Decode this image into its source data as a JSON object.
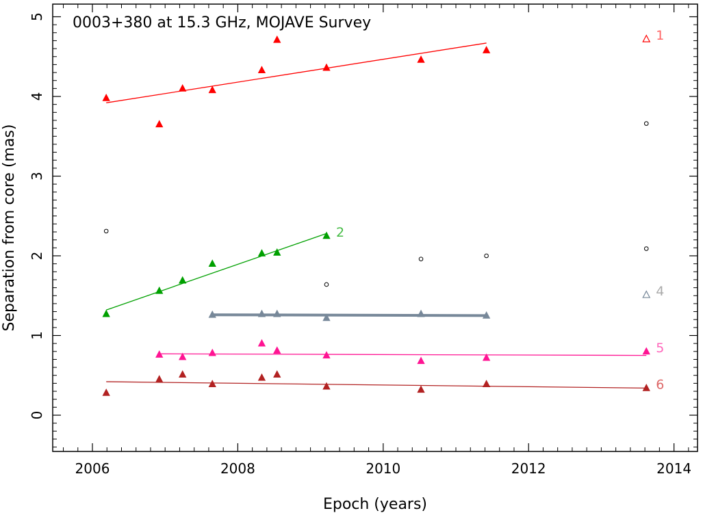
{
  "chart_data": {
    "type": "scatter",
    "title": "0003+380 at 15.3 GHz, MOJAVE Survey",
    "xlabel": "Epoch (years)",
    "ylabel": "Separation from core (mas)",
    "xlim": [
      2005.5,
      2014.5
    ],
    "ylim": [
      -0.45,
      5.1
    ],
    "xticks": [
      2006,
      2008,
      2010,
      2012,
      2014
    ],
    "yticks": [
      0,
      1,
      2,
      3,
      4,
      5
    ],
    "grid": false,
    "series": [
      {
        "name": "1",
        "color": "#ff0000",
        "points": [
          [
            2006.19,
            3.98
          ],
          [
            2006.92,
            3.65
          ],
          [
            2007.24,
            4.1
          ],
          [
            2007.65,
            4.08
          ],
          [
            2008.33,
            4.33
          ],
          [
            2008.54,
            4.71
          ],
          [
            2009.22,
            4.36
          ],
          [
            2010.52,
            4.46
          ],
          [
            2011.42,
            4.58
          ]
        ],
        "open_points": [
          [
            2013.62,
            4.72
          ]
        ],
        "fit": [
          [
            2006.19,
            3.92
          ],
          [
            2011.42,
            4.67
          ]
        ]
      },
      {
        "name": "2",
        "color": "#00a000",
        "points": [
          [
            2006.19,
            1.27
          ],
          [
            2006.92,
            1.56
          ],
          [
            2007.24,
            1.69
          ],
          [
            2007.65,
            1.9
          ],
          [
            2008.33,
            2.03
          ],
          [
            2008.54,
            2.04
          ],
          [
            2009.22,
            2.25
          ]
        ],
        "fit": [
          [
            2006.19,
            1.32
          ],
          [
            2009.22,
            2.28
          ]
        ]
      },
      {
        "name": "4",
        "color": "#778899",
        "points": [
          [
            2007.65,
            1.26
          ],
          [
            2008.33,
            1.27
          ],
          [
            2008.54,
            1.27
          ],
          [
            2009.22,
            1.22
          ],
          [
            2010.52,
            1.27
          ],
          [
            2011.42,
            1.25
          ]
        ],
        "open_points": [
          [
            2013.62,
            1.51
          ]
        ],
        "fit": [
          [
            2007.65,
            1.26
          ],
          [
            2011.42,
            1.25
          ]
        ]
      },
      {
        "name": "5",
        "color": "#ff1493",
        "points": [
          [
            2006.92,
            0.76
          ],
          [
            2007.24,
            0.73
          ],
          [
            2007.65,
            0.78
          ],
          [
            2008.33,
            0.9
          ],
          [
            2008.54,
            0.81
          ],
          [
            2009.22,
            0.75
          ],
          [
            2010.52,
            0.68
          ],
          [
            2011.42,
            0.72
          ],
          [
            2013.62,
            0.8
          ]
        ],
        "fit": [
          [
            2006.92,
            0.77
          ],
          [
            2013.62,
            0.75
          ]
        ]
      },
      {
        "name": "6",
        "color": "#b22222",
        "points": [
          [
            2006.19,
            0.28
          ],
          [
            2006.92,
            0.45
          ],
          [
            2007.24,
            0.51
          ],
          [
            2007.65,
            0.39
          ],
          [
            2008.33,
            0.47
          ],
          [
            2008.54,
            0.51
          ],
          [
            2009.22,
            0.36
          ],
          [
            2010.52,
            0.32
          ],
          [
            2011.42,
            0.39
          ],
          [
            2013.62,
            0.34
          ]
        ],
        "fit": [
          [
            2006.19,
            0.42
          ],
          [
            2013.62,
            0.34
          ]
        ]
      },
      {
        "name": "",
        "color": "#000000",
        "marker": "circle-open",
        "points": [
          [
            2006.19,
            2.31
          ],
          [
            2009.22,
            1.64
          ],
          [
            2010.52,
            1.96
          ],
          [
            2011.42,
            2.0
          ],
          [
            2013.62,
            3.66
          ],
          [
            2013.62,
            2.09
          ]
        ]
      }
    ]
  }
}
